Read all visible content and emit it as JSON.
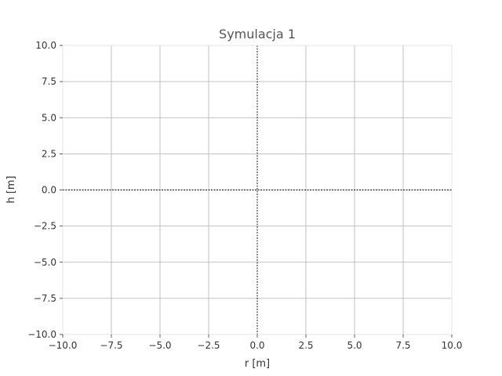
{
  "chart_data": {
    "type": "line",
    "title": "Symulacja 1",
    "xlabel": "r [m]",
    "ylabel": "h [m]",
    "xlim": [
      -10.0,
      10.0
    ],
    "ylim": [
      -10.0,
      10.0
    ],
    "xticks": [
      -10.0,
      -7.5,
      -5.0,
      -2.5,
      0.0,
      2.5,
      5.0,
      7.5,
      10.0
    ],
    "yticks": [
      -10.0,
      -7.5,
      -5.0,
      -2.5,
      0.0,
      2.5,
      5.0,
      7.5,
      10.0
    ],
    "xtick_labels": [
      "−10.0",
      "−7.5",
      "−5.0",
      "−2.5",
      "0.0",
      "2.5",
      "5.0",
      "7.5",
      "10.0"
    ],
    "ytick_labels": [
      "−10.0",
      "−7.5",
      "−5.0",
      "−2.5",
      "0.0",
      "2.5",
      "5.0",
      "7.5",
      "10.0"
    ],
    "grid": true,
    "reference_lines": {
      "x": 0.0,
      "y": 0.0,
      "style": "dashed"
    },
    "series": [],
    "colors": {
      "grid": "#b0b0b0",
      "reference": "#000000",
      "text": "#333333"
    }
  }
}
